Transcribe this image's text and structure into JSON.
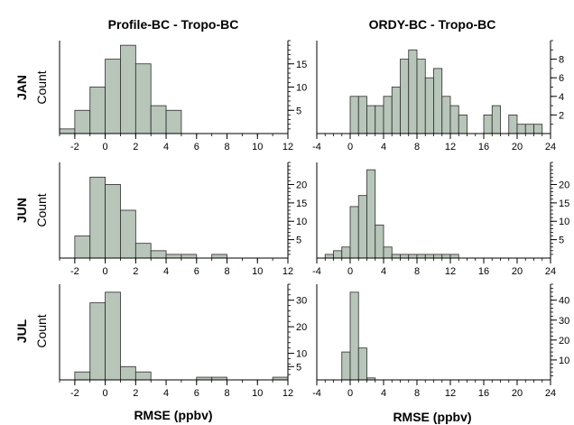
{
  "columns": [
    {
      "title": "Profile-BC - Tropo-BC",
      "xlabel": "RMSE (ppbv)"
    },
    {
      "title": "ORDY-BC - Tropo-BC",
      "xlabel": "RMSE (ppbv)"
    }
  ],
  "row_labels": [
    "JAN",
    "JUN",
    "JUL"
  ],
  "y_axis_label": "Count",
  "colors": {
    "bar_fill": "#b7c6b9",
    "bar_stroke": "#2b2b2b",
    "axis": "#000000"
  },
  "chart_data": [
    {
      "type": "bar",
      "month": "JAN",
      "column": "Profile-BC - Tropo-BC",
      "bin_width": 1,
      "bin_starts": [
        -3,
        -2,
        -1,
        0,
        1,
        2,
        3,
        4
      ],
      "values": [
        1,
        5,
        10,
        16,
        19,
        15,
        6,
        5
      ],
      "xlim": [
        -3,
        12
      ],
      "ylim": [
        0,
        20
      ],
      "xticks": [
        -2,
        0,
        2,
        4,
        6,
        8,
        10,
        12
      ],
      "yticks": [
        5,
        10,
        15
      ]
    },
    {
      "type": "bar",
      "month": "JAN",
      "column": "ORDY-BC - Tropo-BC",
      "bin_width": 1,
      "bin_starts": [
        0,
        1,
        2,
        3,
        4,
        5,
        6,
        7,
        8,
        9,
        10,
        11,
        12,
        13,
        14,
        15,
        16,
        17,
        18,
        19,
        20,
        21,
        22,
        23
      ],
      "values": [
        4,
        4,
        3,
        3,
        4,
        5,
        8,
        9,
        8,
        6,
        7,
        4,
        3,
        2,
        0,
        0,
        2,
        3,
        0,
        2,
        1,
        1,
        1,
        0
      ],
      "xlim": [
        -4,
        24
      ],
      "ylim": [
        0,
        10
      ],
      "xticks": [
        -4,
        0,
        4,
        8,
        12,
        16,
        20,
        24
      ],
      "yticks": [
        2,
        4,
        6,
        8
      ]
    },
    {
      "type": "bar",
      "month": "JUN",
      "column": "Profile-BC - Tropo-BC",
      "bin_width": 1,
      "bin_starts": [
        -2,
        -1,
        0,
        1,
        2,
        3,
        4,
        5,
        6,
        7
      ],
      "values": [
        6,
        22,
        20,
        13,
        4,
        2,
        1,
        1,
        0,
        1
      ],
      "xlim": [
        -3,
        12
      ],
      "ylim": [
        0,
        26
      ],
      "xticks": [
        -2,
        0,
        2,
        4,
        6,
        8,
        10,
        12
      ],
      "yticks": [
        5,
        10,
        15,
        20
      ]
    },
    {
      "type": "bar",
      "month": "JUN",
      "column": "ORDY-BC - Tropo-BC",
      "bin_width": 1,
      "bin_starts": [
        -4,
        -3,
        -2,
        -1,
        0,
        1,
        2,
        3,
        4,
        5,
        6,
        7,
        8,
        9,
        10,
        11,
        12
      ],
      "values": [
        0,
        1,
        2,
        3,
        14,
        17,
        24,
        9,
        3,
        1,
        1,
        1,
        1,
        1,
        1,
        1,
        1
      ],
      "xlim": [
        -4,
        24
      ],
      "ylim": [
        0,
        26
      ],
      "xticks": [
        -4,
        0,
        4,
        8,
        12,
        16,
        20,
        24
      ],
      "yticks": [
        5,
        10,
        15,
        20
      ]
    },
    {
      "type": "bar",
      "month": "JUL",
      "column": "Profile-BC - Tropo-BC",
      "bin_width": 1,
      "bin_starts": [
        -2,
        -1,
        0,
        1,
        2,
        3,
        4,
        5,
        6,
        7,
        8,
        9,
        10,
        11
      ],
      "values": [
        3,
        29,
        33,
        5,
        3,
        0,
        0,
        0,
        1,
        1,
        0,
        0,
        0,
        1
      ],
      "xlim": [
        -3,
        12
      ],
      "ylim": [
        0,
        36
      ],
      "xticks": [
        -2,
        0,
        2,
        4,
        6,
        8,
        10,
        12
      ],
      "yticks": [
        5,
        10,
        20,
        30
      ]
    },
    {
      "type": "bar",
      "month": "JUL",
      "column": "ORDY-BC - Tropo-BC",
      "bin_width": 1,
      "bin_starts": [
        -1,
        0,
        1,
        2
      ],
      "values": [
        14,
        44,
        16,
        1
      ],
      "xlim": [
        -4,
        24
      ],
      "ylim": [
        0,
        48
      ],
      "xticks": [
        -4,
        0,
        4,
        8,
        12,
        16,
        20,
        24
      ],
      "yticks": [
        10,
        20,
        30,
        40
      ]
    }
  ]
}
